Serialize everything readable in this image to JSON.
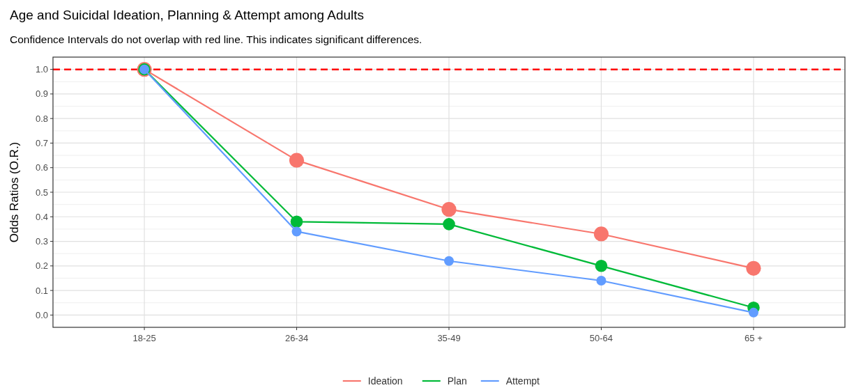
{
  "chart_data": {
    "type": "line",
    "title": "Age and Suicidal Ideation, Planning & Attempt among Adults",
    "subtitle": "Confidence Intervals do not overlap with red line. This indicates significant differences.",
    "ylabel": "Odds Ratios (O.R.)",
    "categories": [
      "18-25",
      "26-34",
      "35-49",
      "50-64",
      "65 +"
    ],
    "series": [
      {
        "name": "Ideation",
        "color": "#f8766d",
        "values": [
          1.0,
          0.63,
          0.43,
          0.33,
          0.19
        ]
      },
      {
        "name": "Plan",
        "color": "#00ba38",
        "values": [
          1.0,
          0.38,
          0.37,
          0.2,
          0.03
        ]
      },
      {
        "name": "Attempt",
        "color": "#619cff",
        "values": [
          1.0,
          0.34,
          0.22,
          0.14,
          0.01
        ]
      }
    ],
    "ylim": [
      -0.05,
      1.05
    ],
    "yticks": [
      {
        "value": 0,
        "label": "0.0"
      },
      {
        "value": 0.1,
        "label": "0.1"
      },
      {
        "value": 0.2,
        "label": "0.2"
      },
      {
        "value": 0.3,
        "label": "0.3"
      },
      {
        "value": 0.4,
        "label": "0.4"
      },
      {
        "value": 0.5,
        "label": "0.5"
      },
      {
        "value": 0.6,
        "label": "0.6"
      },
      {
        "value": 0.7,
        "label": "0.7"
      },
      {
        "value": 0.8,
        "label": "0.8"
      },
      {
        "value": 0.9,
        "label": "0.9"
      },
      {
        "value": 1,
        "label": "1.0"
      }
    ],
    "ref_lines": [
      {
        "axis": "y",
        "value": 1.0,
        "color": "#ff0000",
        "line_style": "dashed"
      }
    ],
    "grid": true,
    "legend": "bottom",
    "marker": "circle",
    "line_style": "solid"
  }
}
